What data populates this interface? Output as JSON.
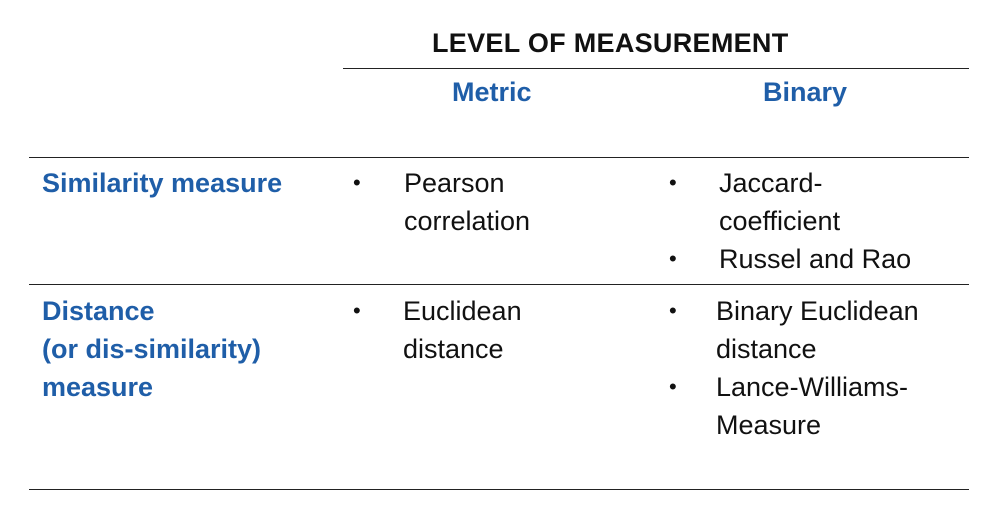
{
  "table": {
    "super_header": "LEVEL OF MEASUREMENT",
    "columns": [
      {
        "label": "Metric"
      },
      {
        "label": "Binary"
      }
    ],
    "rows": [
      {
        "header_lines": [
          "Similarity measure"
        ],
        "metric_items": [
          {
            "lines": [
              "Pearson",
              "correlation"
            ]
          }
        ],
        "binary_items": [
          {
            "lines": [
              "Jaccard-",
              "coefficient"
            ]
          },
          {
            "lines": [
              "Russel and Rao"
            ]
          }
        ]
      },
      {
        "header_lines": [
          "Distance",
          "(or dis-similarity)",
          "measure"
        ],
        "metric_items": [
          {
            "lines": [
              "Euclidean",
              "distance"
            ]
          }
        ],
        "binary_items": [
          {
            "lines": [
              "Binary Euclidean",
              "distance"
            ]
          },
          {
            "lines": [
              "Lance-Williams-",
              "Measure"
            ]
          }
        ]
      }
    ],
    "bullet_glyph": "•",
    "colors": {
      "header_blue": "#1f5ea8",
      "text": "#111111",
      "rule": "#222222"
    }
  }
}
